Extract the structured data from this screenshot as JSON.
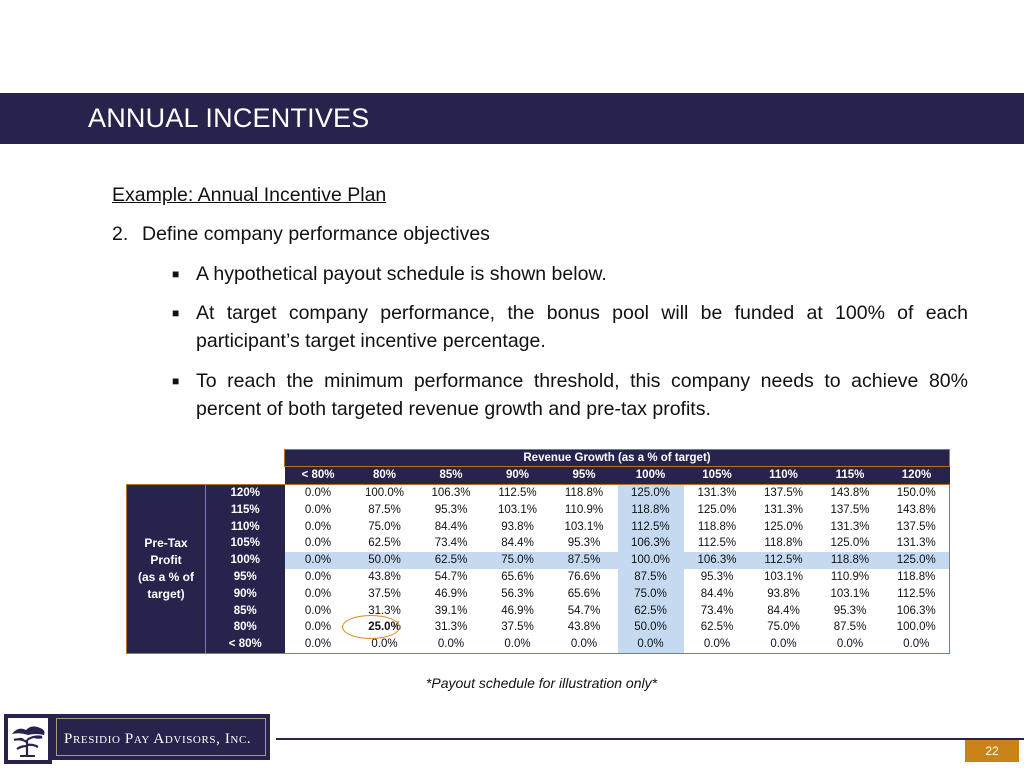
{
  "header": {
    "title": "ANNUAL INCENTIVES"
  },
  "content": {
    "heading": "Example:  Annual Incentive Plan",
    "step_number": "2.",
    "step_text": "Define company performance objectives",
    "bullets": [
      "A hypothetical payout schedule is shown below.",
      "At target company performance, the bonus pool will be funded at 100% of each participant’s target incentive percentage.",
      "To reach the minimum performance threshold, this company needs to achieve 80% percent of both targeted revenue growth and pre-tax profits."
    ]
  },
  "table": {
    "col_group_label": "Revenue Growth (as a % of target)",
    "row_group_label": [
      "Pre-Tax",
      "Profit",
      "(as a % of",
      "target)"
    ],
    "columns": [
      "< 80%",
      "80%",
      "85%",
      "90%",
      "95%",
      "100%",
      "105%",
      "110%",
      "115%",
      "120%"
    ],
    "rows": [
      {
        "label": "120%",
        "values": [
          "0.0%",
          "100.0%",
          "106.3%",
          "112.5%",
          "118.8%",
          "125.0%",
          "131.3%",
          "137.5%",
          "143.8%",
          "150.0%"
        ]
      },
      {
        "label": "115%",
        "values": [
          "0.0%",
          "87.5%",
          "95.3%",
          "103.1%",
          "110.9%",
          "118.8%",
          "125.0%",
          "131.3%",
          "137.5%",
          "143.8%"
        ]
      },
      {
        "label": "110%",
        "values": [
          "0.0%",
          "75.0%",
          "84.4%",
          "93.8%",
          "103.1%",
          "112.5%",
          "118.8%",
          "125.0%",
          "131.3%",
          "137.5%"
        ]
      },
      {
        "label": "105%",
        "values": [
          "0.0%",
          "62.5%",
          "73.4%",
          "84.4%",
          "95.3%",
          "106.3%",
          "112.5%",
          "118.8%",
          "125.0%",
          "131.3%"
        ]
      },
      {
        "label": "100%",
        "values": [
          "0.0%",
          "50.0%",
          "62.5%",
          "75.0%",
          "87.5%",
          "100.0%",
          "106.3%",
          "112.5%",
          "118.8%",
          "125.0%"
        ]
      },
      {
        "label": "95%",
        "values": [
          "0.0%",
          "43.8%",
          "54.7%",
          "65.6%",
          "76.6%",
          "87.5%",
          "95.3%",
          "103.1%",
          "110.9%",
          "118.8%"
        ]
      },
      {
        "label": "90%",
        "values": [
          "0.0%",
          "37.5%",
          "46.9%",
          "56.3%",
          "65.6%",
          "75.0%",
          "84.4%",
          "93.8%",
          "103.1%",
          "112.5%"
        ]
      },
      {
        "label": "85%",
        "values": [
          "0.0%",
          "31.3%",
          "39.1%",
          "46.9%",
          "54.7%",
          "62.5%",
          "73.4%",
          "84.4%",
          "95.3%",
          "106.3%"
        ]
      },
      {
        "label": "80%",
        "values": [
          "0.0%",
          "25.0%",
          "31.3%",
          "37.5%",
          "43.8%",
          "50.0%",
          "62.5%",
          "75.0%",
          "87.5%",
          "100.0%"
        ]
      },
      {
        "label": "< 80%",
        "values": [
          "0.0%",
          "0.0%",
          "0.0%",
          "0.0%",
          "0.0%",
          "0.0%",
          "0.0%",
          "0.0%",
          "0.0%",
          "0.0%"
        ]
      }
    ],
    "highlight_column": "100%",
    "highlight_row": "100%",
    "circled_cell": "25.0%"
  },
  "footnote": "*Payout schedule for illustration only*",
  "footer": {
    "company": "Presidio Pay Advisors, Inc.",
    "page_number": "22",
    "logo_icon": "tree-logo-icon"
  },
  "colors": {
    "navy": "#27234c",
    "highlight": "#c5d9f0",
    "accent": "#c98317",
    "circle": "#d98a1a"
  }
}
